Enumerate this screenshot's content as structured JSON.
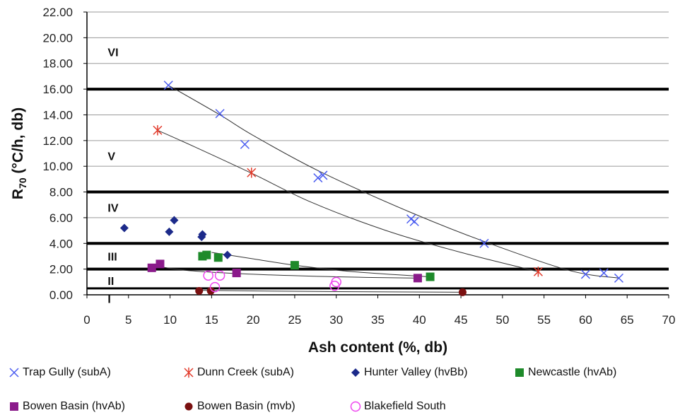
{
  "chart_data": {
    "type": "scatter",
    "xlabel": "Ash content (%, db)",
    "ylabel_main": "R",
    "ylabel_sub": "70",
    "ylabel_rest": " (°C/h, db)",
    "xlim": [
      0,
      70
    ],
    "ylim": [
      0,
      22
    ],
    "x_ticks": [
      "0",
      "5",
      "10",
      "15",
      "20",
      "25",
      "30",
      "35",
      "40",
      "45",
      "50",
      "55",
      "60",
      "65",
      "70"
    ],
    "y_ticks": [
      "0.00",
      "2.00",
      "4.00",
      "6.00",
      "8.00",
      "10.00",
      "12.00",
      "14.00",
      "16.00",
      "18.00",
      "20.00",
      "22.00"
    ],
    "grid": "horizontal",
    "legend_position": "bottom",
    "band_lines": [
      0.5,
      2,
      4,
      8,
      16
    ],
    "band_labels": [
      {
        "text": "VI",
        "x": 2.5,
        "y": 18.9
      },
      {
        "text": "V",
        "x": 2.5,
        "y": 10.8
      },
      {
        "text": "IV",
        "x": 2.5,
        "y": 6.8
      },
      {
        "text": "III",
        "x": 2.5,
        "y": 3.0
      },
      {
        "text": "II",
        "x": 2.5,
        "y": 1.1
      },
      {
        "text": "I",
        "x": 2.5,
        "y": -0.3
      }
    ],
    "series": [
      {
        "name": "Trap Gully (subA)",
        "marker": "x",
        "color": "#4a5cf0",
        "points": [
          [
            9.8,
            16.3
          ],
          [
            16.0,
            14.1
          ],
          [
            19.0,
            11.7
          ],
          [
            27.8,
            9.1
          ],
          [
            28.4,
            9.3
          ],
          [
            39.0,
            5.9
          ],
          [
            39.4,
            5.7
          ],
          [
            47.8,
            4.0
          ],
          [
            60.0,
            1.6
          ],
          [
            62.2,
            1.7
          ],
          [
            64.0,
            1.3
          ]
        ]
      },
      {
        "name": "Dunn Creek (subA)",
        "marker": "asterisk",
        "color": "#e23a2a",
        "points": [
          [
            8.5,
            12.8
          ],
          [
            19.8,
            9.5
          ],
          [
            54.3,
            1.8
          ]
        ]
      },
      {
        "name": "Hunter Valley (hvBb)",
        "marker": "diamond",
        "color": "#1c2a8a",
        "points": [
          [
            4.5,
            5.2
          ],
          [
            9.9,
            4.9
          ],
          [
            10.5,
            5.8
          ],
          [
            13.8,
            4.5
          ],
          [
            13.9,
            4.7
          ],
          [
            16.9,
            3.1
          ]
        ]
      },
      {
        "name": "Newcastle (hvAb)",
        "marker": "square",
        "color": "#1e8a2a",
        "points": [
          [
            13.9,
            3.0
          ],
          [
            14.4,
            3.1
          ],
          [
            15.8,
            2.9
          ],
          [
            25.0,
            2.3
          ],
          [
            41.3,
            1.4
          ]
        ]
      },
      {
        "name": "Bowen Basin (hvAb)",
        "marker": "square",
        "color": "#8a1a8a",
        "points": [
          [
            7.8,
            2.1
          ],
          [
            8.8,
            2.4
          ],
          [
            18.0,
            1.7
          ],
          [
            39.8,
            1.3
          ]
        ]
      },
      {
        "name": "Bowen Basin (mvb)",
        "marker": "circle",
        "color": "#7a1010",
        "points": [
          [
            13.5,
            0.3
          ],
          [
            14.9,
            0.3
          ],
          [
            45.2,
            0.2
          ]
        ]
      },
      {
        "name": "Blakefield South",
        "marker": "circle-open",
        "color": "#ee44ee",
        "points": [
          [
            14.6,
            1.5
          ],
          [
            15.4,
            0.6
          ],
          [
            16.0,
            1.5
          ],
          [
            29.8,
            0.7
          ],
          [
            30.0,
            1.0
          ]
        ]
      }
    ],
    "trend_lines": [
      {
        "color": "#333333",
        "points": [
          [
            9.8,
            16.3
          ],
          [
            16,
            14.0
          ],
          [
            20,
            12.4
          ],
          [
            28,
            9.6
          ],
          [
            39,
            6.4
          ],
          [
            48,
            4.1
          ],
          [
            58,
            1.9
          ],
          [
            64,
            1.3
          ]
        ]
      },
      {
        "color": "#333333",
        "points": [
          [
            8.5,
            12.8
          ],
          [
            13,
            11.5
          ],
          [
            20,
            9.4
          ],
          [
            27,
            7.2
          ],
          [
            36,
            5.0
          ],
          [
            45,
            3.3
          ],
          [
            54.3,
            1.8
          ]
        ]
      },
      {
        "color": "#333333",
        "points": [
          [
            15,
            3.3
          ],
          [
            20,
            2.8
          ],
          [
            25,
            2.3
          ],
          [
            32,
            1.8
          ],
          [
            41.3,
            1.4
          ]
        ]
      },
      {
        "color": "#333333",
        "points": [
          [
            7.8,
            2.3
          ],
          [
            12,
            1.9
          ],
          [
            20,
            1.6
          ],
          [
            30,
            1.4
          ],
          [
            39.8,
            1.3
          ]
        ]
      },
      {
        "color": "#333333",
        "points": [
          [
            13.5,
            0.35
          ],
          [
            20,
            0.3
          ],
          [
            30,
            0.25
          ],
          [
            45.2,
            0.2
          ]
        ]
      }
    ]
  }
}
